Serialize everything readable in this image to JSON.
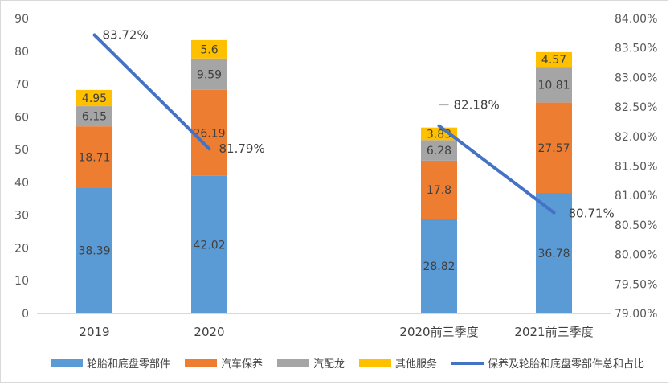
{
  "chart_data": {
    "type": "bar",
    "stacked": true,
    "categories": [
      "2019",
      "2020",
      "",
      "2020前三季度",
      "2021前三季度"
    ],
    "series": [
      {
        "name": "轮胎和底盘零部件",
        "color": "#5b9bd5",
        "values": [
          38.39,
          42.02,
          null,
          28.82,
          36.78
        ],
        "labels": [
          "38.39",
          "42.02",
          "",
          "28.82",
          "36.78"
        ]
      },
      {
        "name": "汽车保养",
        "color": "#ed7d31",
        "values": [
          18.71,
          26.19,
          null,
          17.8,
          27.57
        ],
        "labels": [
          "18.71",
          "26.19",
          "",
          "17.8",
          "27.57"
        ]
      },
      {
        "name": "汽配龙",
        "color": "#a5a5a5",
        "values": [
          6.15,
          9.59,
          null,
          6.28,
          10.81
        ],
        "labels": [
          "6.15",
          "9.59",
          "",
          "6.28",
          "10.81"
        ]
      },
      {
        "name": "其他服务",
        "color": "#ffc000",
        "values": [
          4.95,
          5.6,
          null,
          3.83,
          4.57
        ],
        "labels": [
          "4.95",
          "5.6",
          "",
          "3.83",
          "4.57"
        ]
      }
    ],
    "line_series": {
      "name": "保养及轮胎和底盘零部件总和占比",
      "color": "#4472c4",
      "axis": "right",
      "values": [
        83.72,
        81.79,
        null,
        82.18,
        80.71
      ],
      "labels": [
        "83.72%",
        "81.79%",
        "",
        "82.18%",
        "80.71%"
      ]
    },
    "y_left": {
      "min": 0,
      "max": 90,
      "ticks": [
        "0",
        "10",
        "20",
        "30",
        "40",
        "50",
        "60",
        "70",
        "80",
        "90"
      ]
    },
    "y_right": {
      "min": 79,
      "max": 84,
      "ticks": [
        "79.00%",
        "79.50%",
        "80.00%",
        "80.50%",
        "81.00%",
        "81.50%",
        "82.00%",
        "82.50%",
        "83.00%",
        "83.50%",
        "84.00%"
      ]
    },
    "legend_position": "bottom",
    "grid": false
  }
}
